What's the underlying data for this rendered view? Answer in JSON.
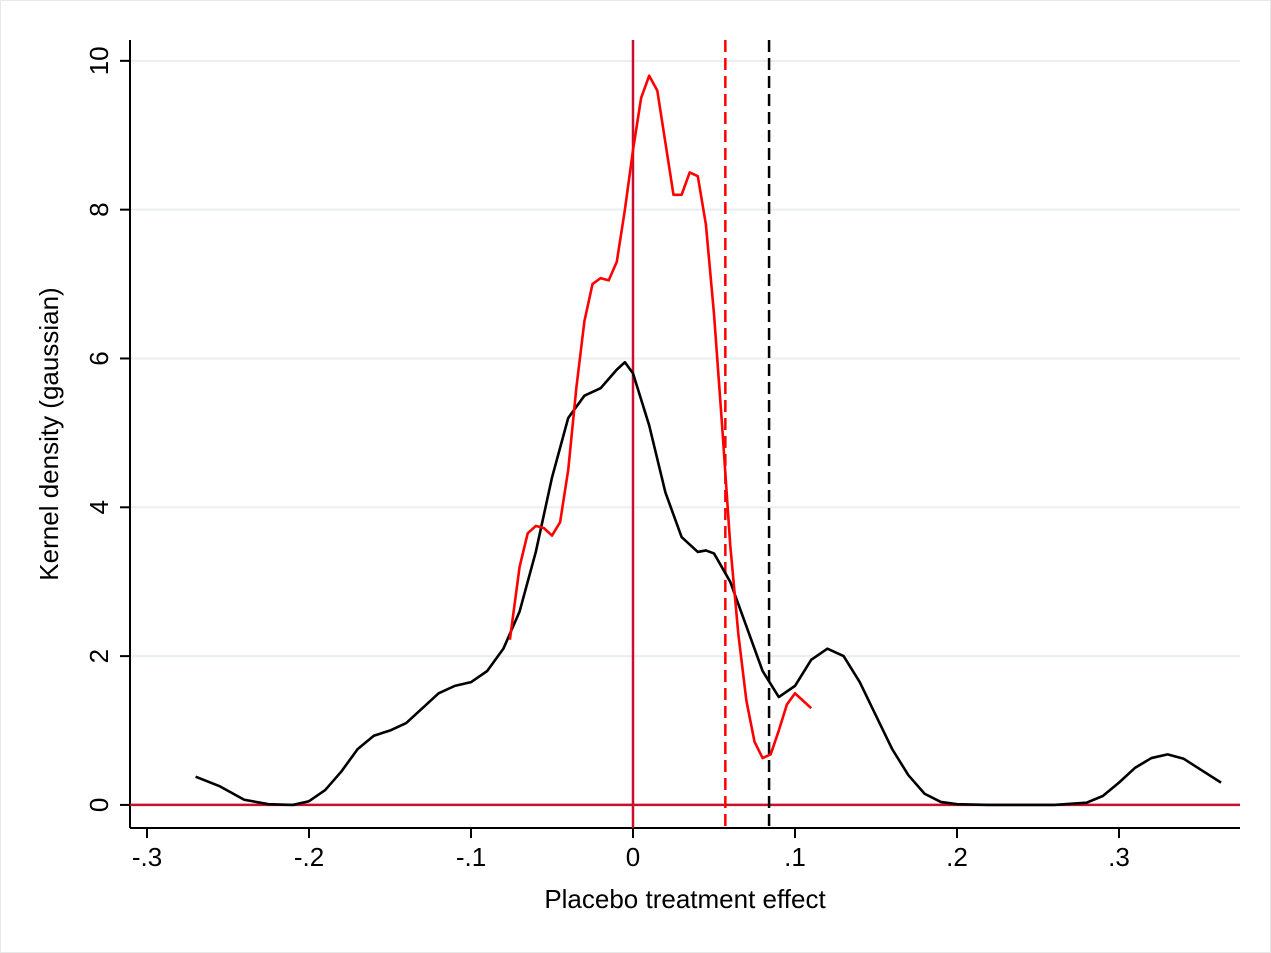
{
  "chart_data": {
    "type": "line",
    "xlabel": "Placebo treatment effect",
    "ylabel": "Kernel density (gaussian)",
    "xlim": [
      -0.3105,
      0.3747
    ],
    "ylim": [
      -0.31,
      10.28
    ],
    "xticks": [
      {
        "value": -0.3,
        "label": "-.3"
      },
      {
        "value": -0.2,
        "label": "-.2"
      },
      {
        "value": -0.1,
        "label": "-.1"
      },
      0,
      {
        "value": 0.1,
        "label": ".1"
      },
      {
        "value": 0.2,
        "label": ".2"
      },
      {
        "value": 0.3,
        "label": ".3"
      }
    ],
    "yticks": [
      0,
      2,
      4,
      6,
      8,
      10
    ],
    "grid": true,
    "series": [
      {
        "color": "#000000",
        "x": [
          -0.27,
          -0.255,
          -0.24,
          -0.225,
          -0.21,
          -0.2,
          -0.19,
          -0.18,
          -0.17,
          -0.16,
          -0.15,
          -0.14,
          -0.13,
          -0.12,
          -0.11,
          -0.1,
          -0.09,
          -0.08,
          -0.07,
          -0.06,
          -0.05,
          -0.04,
          -0.03,
          -0.02,
          -0.01,
          -0.005,
          0,
          0.01,
          0.02,
          0.03,
          0.04,
          0.045,
          0.05,
          0.06,
          0.07,
          0.08,
          0.09,
          0.1,
          0.11,
          0.12,
          0.13,
          0.14,
          0.15,
          0.16,
          0.17,
          0.18,
          0.19,
          0.2,
          0.22,
          0.26,
          0.28,
          0.29,
          0.3,
          0.31,
          0.32,
          0.33,
          0.34,
          0.35,
          0.363
        ],
        "values": [
          0.38,
          0.25,
          0.07,
          0.01,
          0,
          0.05,
          0.2,
          0.45,
          0.75,
          0.93,
          1.0,
          1.1,
          1.3,
          1.5,
          1.6,
          1.65,
          1.8,
          2.1,
          2.6,
          3.4,
          4.4,
          5.2,
          5.5,
          5.6,
          5.85,
          5.95,
          5.8,
          5.1,
          4.2,
          3.6,
          3.4,
          3.42,
          3.38,
          3.0,
          2.4,
          1.8,
          1.45,
          1.6,
          1.95,
          2.1,
          2.0,
          1.65,
          1.2,
          0.75,
          0.4,
          0.15,
          0.04,
          0.01,
          0,
          0,
          0.03,
          0.12,
          0.3,
          0.5,
          0.63,
          0.68,
          0.62,
          0.48,
          0.3
        ]
      },
      {
        "color": "#ff0000",
        "x": [
          -0.076,
          -0.07,
          -0.065,
          -0.06,
          -0.055,
          -0.05,
          -0.045,
          -0.04,
          -0.035,
          -0.03,
          -0.025,
          -0.02,
          -0.015,
          -0.01,
          -0.005,
          0,
          0.005,
          0.01,
          0.015,
          0.02,
          0.025,
          0.03,
          0.035,
          0.04,
          0.045,
          0.05,
          0.055,
          0.06,
          0.065,
          0.07,
          0.075,
          0.08,
          0.085,
          0.09,
          0.095,
          0.1,
          0.105,
          0.11
        ],
        "values": [
          2.22,
          3.2,
          3.65,
          3.75,
          3.72,
          3.62,
          3.8,
          4.5,
          5.6,
          6.5,
          7.0,
          7.08,
          7.05,
          7.3,
          8.0,
          8.8,
          9.5,
          9.8,
          9.6,
          8.9,
          8.2,
          8.2,
          8.5,
          8.45,
          7.8,
          6.6,
          5.1,
          3.5,
          2.3,
          1.4,
          0.85,
          0.63,
          0.68,
          1.0,
          1.35,
          1.5,
          1.4,
          1.3
        ]
      }
    ],
    "vlines": [
      {
        "value": 0,
        "color": "#c8102e",
        "dashed": false
      },
      {
        "value": 0.057,
        "color": "#ff0000",
        "dashed": true
      },
      {
        "value": 0.084,
        "color": "#000000",
        "dashed": true
      }
    ],
    "hlines": [
      {
        "value": 0,
        "color": "#c8102e"
      }
    ]
  }
}
